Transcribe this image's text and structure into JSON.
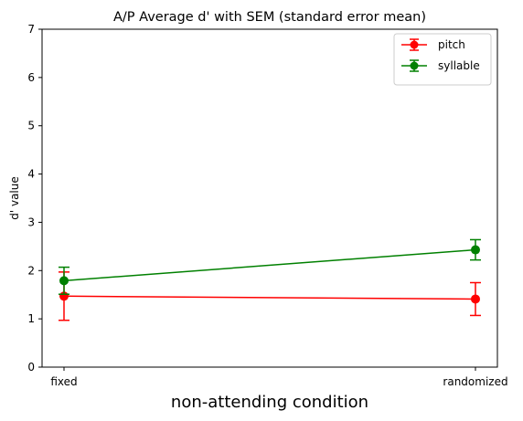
{
  "chart_data": {
    "type": "line",
    "title": "A/P Average d' with SEM (standard error mean)",
    "xlabel": "non-attending condition",
    "ylabel": "d' value",
    "categories": [
      "fixed",
      "randomized"
    ],
    "ylim": [
      0,
      7
    ],
    "yticks": [
      0,
      1,
      2,
      3,
      4,
      5,
      6,
      7
    ],
    "legend_position": "top-right",
    "grid": false,
    "series": [
      {
        "name": "pitch",
        "color": "#ff0000",
        "values": [
          1.47,
          1.41
        ],
        "errors": [
          0.5,
          0.34
        ]
      },
      {
        "name": "syllable",
        "color": "#008000",
        "values": [
          1.79,
          2.43
        ],
        "errors": [
          0.28,
          0.21
        ]
      }
    ]
  }
}
